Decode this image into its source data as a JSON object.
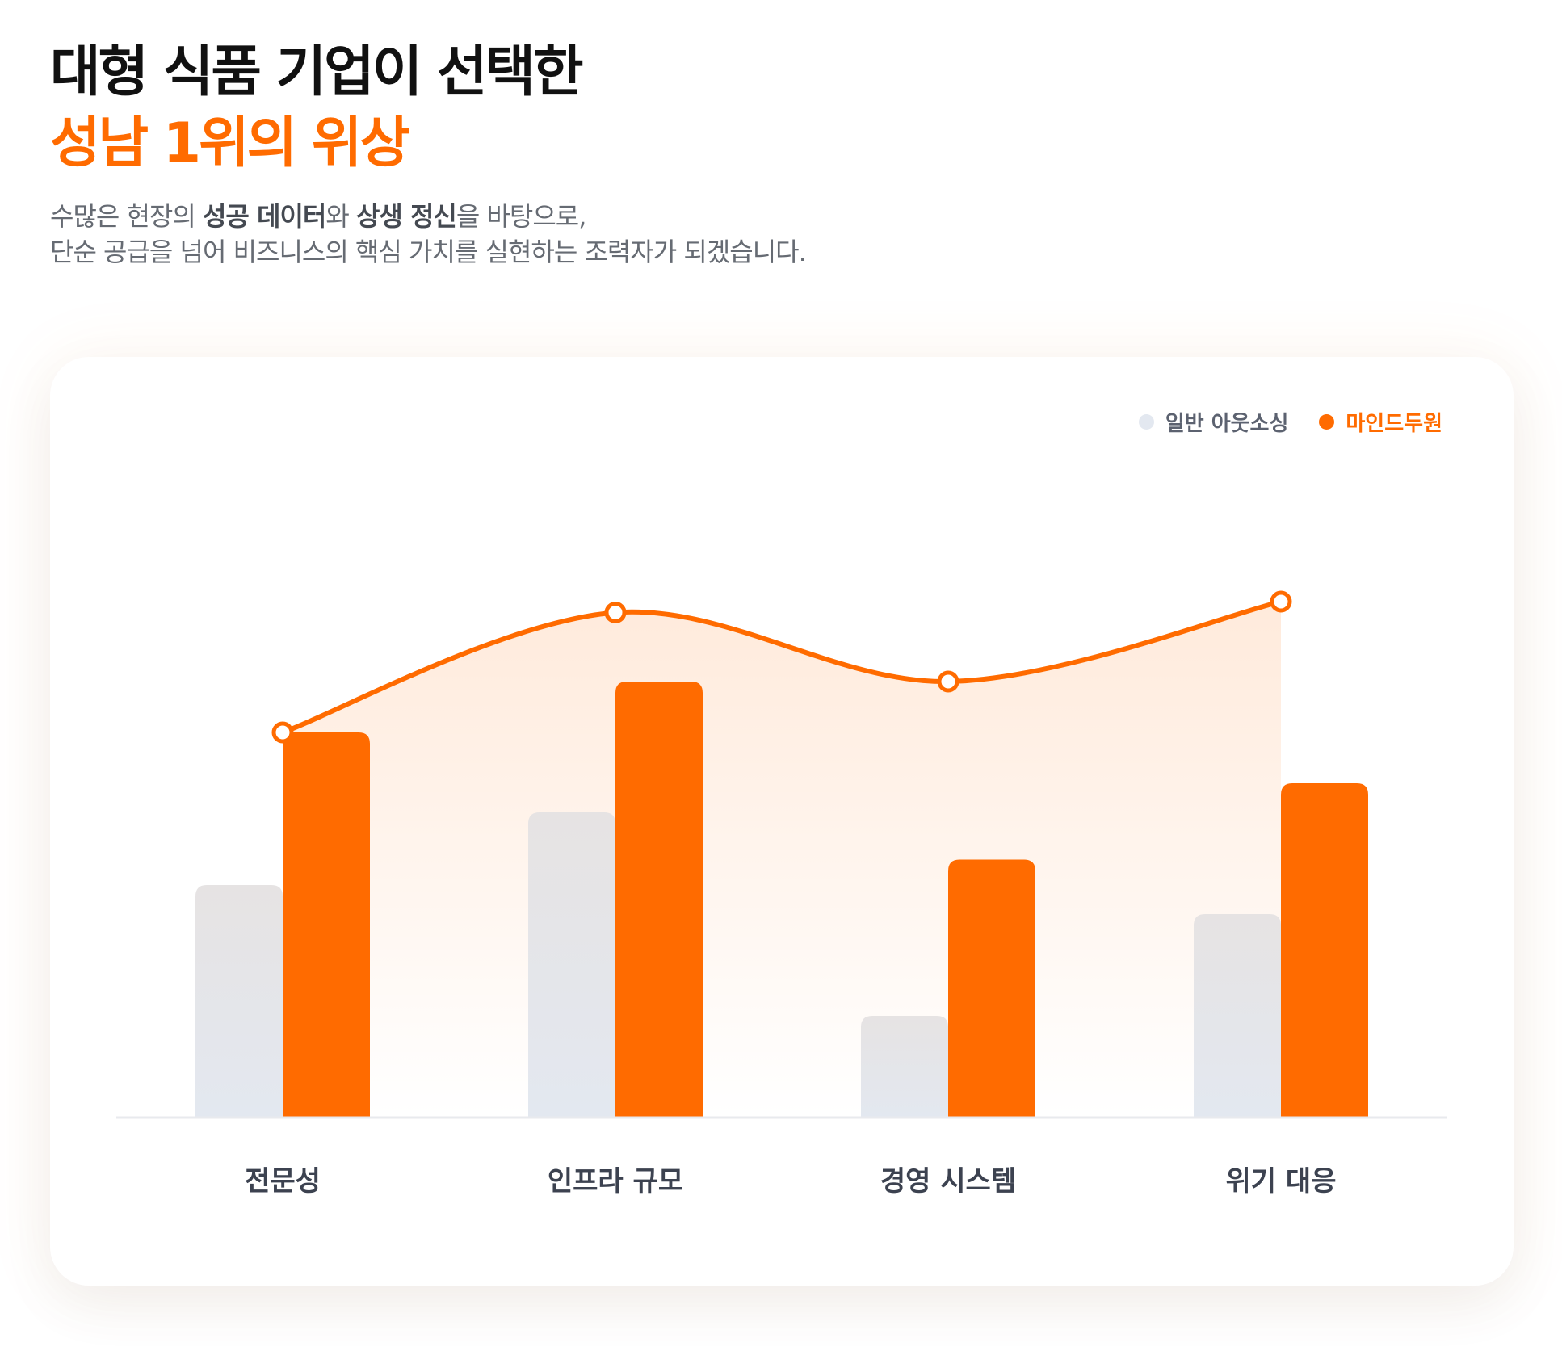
{
  "headline": {
    "line1": "대형 식품 기업이 선택한",
    "line2": "성남 1위의 위상"
  },
  "subtitle": {
    "line1_parts": [
      "수많은 현장의 ",
      "성공 데이터",
      "와 ",
      "상생 정신",
      "을 바탕으로,"
    ],
    "line2": "단순 공급을 넘어 비즈니스의 핵심 가치를 실현하는 조력자가 되겠습니다."
  },
  "colors": {
    "accent": "#ff6b00",
    "general_bar": "#e3e8f0",
    "headline_dark": "#111111"
  },
  "chart_data": {
    "type": "bar",
    "title": "",
    "xlabel": "",
    "ylabel": "",
    "ylim": [
      0,
      100
    ],
    "grid": false,
    "legend_position": "top-right",
    "categories": [
      "전문성",
      "인프라 규모",
      "경영 시스템",
      "위기 대응"
    ],
    "series": [
      {
        "name": "일반 아웃소싱",
        "kind": "bar",
        "color": "#e3e8f0",
        "values": [
          32,
          42,
          14,
          28
        ]
      },
      {
        "name": "마인드두원",
        "kind": "bar",
        "color": "#ff6b00",
        "values": [
          53,
          60,
          35.5,
          46
        ]
      },
      {
        "name": "마인드두원",
        "kind": "line-area",
        "color": "#ff6b00",
        "values": [
          53,
          69.5,
          60,
          71
        ]
      }
    ]
  }
}
